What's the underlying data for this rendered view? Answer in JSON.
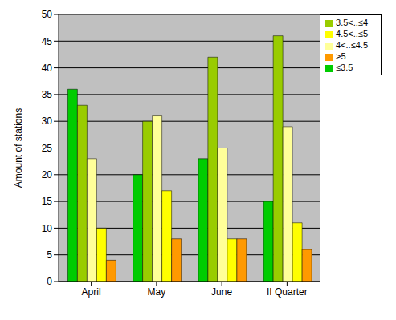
{
  "chart_data": {
    "type": "bar",
    "y_label": "Amount of stations",
    "categories": [
      "April",
      "May",
      "June",
      "II Quarter"
    ],
    "series": [
      {
        "name": "≤3.5",
        "color": "#00cc00",
        "values": [
          36,
          20,
          23,
          15
        ]
      },
      {
        "name": "3.5<..≤4",
        "color": "#99cc00",
        "values": [
          33,
          30,
          42,
          46
        ]
      },
      {
        "name": "4<..≤4.5",
        "color": "#ffff99",
        "values": [
          23,
          31,
          25,
          29
        ]
      },
      {
        "name": "4.5<..≤5",
        "color": "#ffff00",
        "values": [
          10,
          17,
          8,
          11
        ]
      },
      {
        "name": ">5",
        "color": "#ff9900",
        "values": [
          4,
          8,
          8,
          6
        ]
      }
    ],
    "ylim": [
      0,
      50
    ],
    "yticks": [
      0,
      5,
      10,
      15,
      20,
      25,
      30,
      35,
      40,
      45,
      50
    ],
    "grid": true,
    "legend": "top-right"
  }
}
